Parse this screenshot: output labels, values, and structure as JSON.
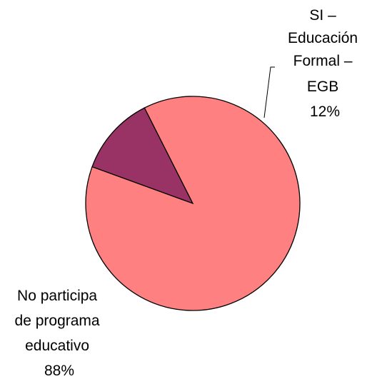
{
  "chart_data": {
    "type": "pie",
    "title": "",
    "slices": [
      {
        "label_lines": [
          "SI –",
          "Educación",
          "Formal –",
          "EGB"
        ],
        "value": 12,
        "percent_label": "12%",
        "color": "#993366"
      },
      {
        "label_lines": [
          "No participa",
          "de programa",
          "educativo"
        ],
        "value": 88,
        "percent_label": "88%",
        "color": "#ff8080"
      }
    ],
    "legend": "none"
  }
}
